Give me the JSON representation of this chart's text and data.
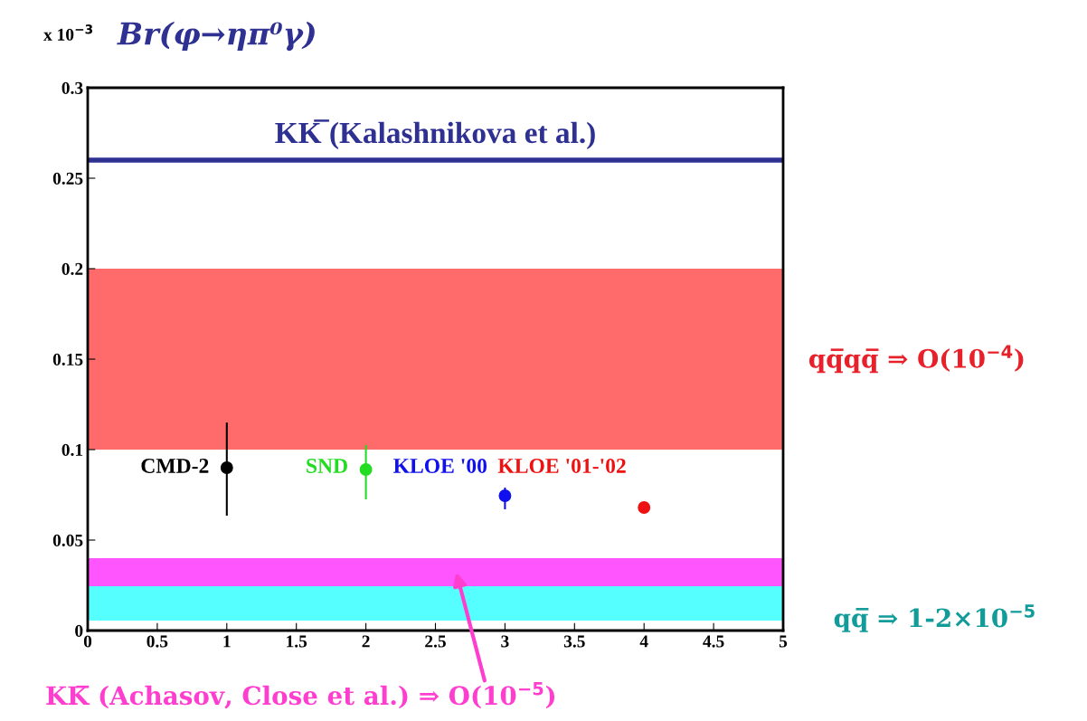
{
  "chart_data": {
    "type": "scatter",
    "title": "Br(φ→ηπ⁰γ)",
    "xlim": [
      0,
      5
    ],
    "xticks": [
      0,
      0.5,
      1,
      1.5,
      2,
      2.5,
      3,
      3.5,
      4,
      4.5,
      5
    ],
    "ylim": [
      0,
      0.3
    ],
    "yticks": [
      0,
      0.05,
      0.1,
      0.15,
      0.2,
      0.25,
      0.3
    ],
    "marker": "circle",
    "grid": false,
    "legend": false,
    "series": [
      {
        "name": "CMD-2",
        "color": "#000000",
        "x": [
          1
        ],
        "values": [
          0.09
        ],
        "errors": [
          [
            0.0635,
            0.115
          ]
        ]
      },
      {
        "name": "SND",
        "color": "#22dd22",
        "x": [
          2
        ],
        "values": [
          0.089
        ],
        "errors": [
          [
            0.0725,
            0.1025
          ]
        ]
      },
      {
        "name": "KLOE '00",
        "color": "#1010ee",
        "x": [
          3
        ],
        "values": [
          0.0745
        ],
        "errors": [
          [
            0.067,
            0.079
          ]
        ]
      },
      {
        "name": "KLOE '01-'02",
        "color": "#ee1111",
        "x": [
          4
        ],
        "values": [
          0.068
        ],
        "errors": [
          null
        ]
      }
    ],
    "ref_lines": [
      {
        "axis": "y",
        "value": 0.26,
        "label": "KK̅ (Kalashnikova et al.)",
        "color": "#2e3192",
        "line_style": "solid"
      }
    ],
    "bands": [
      {
        "axis": "y",
        "from": 0.1,
        "to": 0.2,
        "label": "qq̅qq̅ ⇒ O(10$^{−4}$)",
        "color": "#ff6a6a"
      },
      {
        "axis": "y",
        "from": 0.0245,
        "to": 0.04,
        "label": "KK̅ (Achasov, Close et al.) ⇒ O(10$^{−5}$)",
        "color": "#ff55ff"
      },
      {
        "axis": "y",
        "from": 0.0055,
        "to": 0.0245,
        "label": "qq̅ ⇒ 1-2×10$^{−5}$",
        "color": "#55ffff"
      }
    ],
    "annotations": [
      "x 10$^{−3}$"
    ]
  }
}
